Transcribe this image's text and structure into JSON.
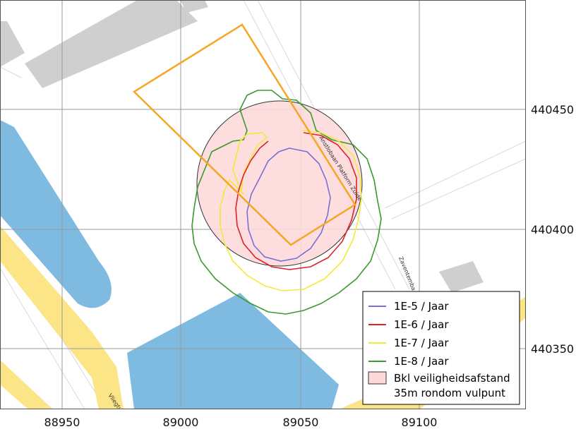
{
  "map": {
    "x_ticks": [
      {
        "label": "88950",
        "value": 88950
      },
      {
        "label": "89000",
        "value": 89000
      },
      {
        "label": "89050",
        "value": 89050
      },
      {
        "label": "89100",
        "value": 89100
      }
    ],
    "y_ticks": [
      {
        "label": "440450",
        "value": 440450
      },
      {
        "label": "440400",
        "value": 440400
      },
      {
        "label": "440350",
        "value": 440350
      }
    ],
    "road_labels": [
      "Anstlobaan Platform Zuide",
      "Zaventemba",
      "Vliegtu"
    ],
    "colors": {
      "water": "#7fbbe0",
      "road": "#fbe586",
      "building": "#cfcfcf",
      "boundary": "#f5a623",
      "safety_zone": "#fdd9da",
      "grid": "#9a9a9a"
    }
  },
  "legend": {
    "items": [
      {
        "label": "1E-5 / Jaar",
        "color": "#7b6fd6"
      },
      {
        "label": "1E-6 / Jaar",
        "color": "#e0202a"
      },
      {
        "label": "1E-7 / Jaar",
        "color": "#f2ea3a"
      },
      {
        "label": "1E-8 / Jaar",
        "color": "#3a9a2c"
      }
    ],
    "zone": {
      "line1": "Bkl veiligheidsafstand",
      "line2": "35m rondom vulpunt",
      "color": "#fdd9da"
    }
  }
}
